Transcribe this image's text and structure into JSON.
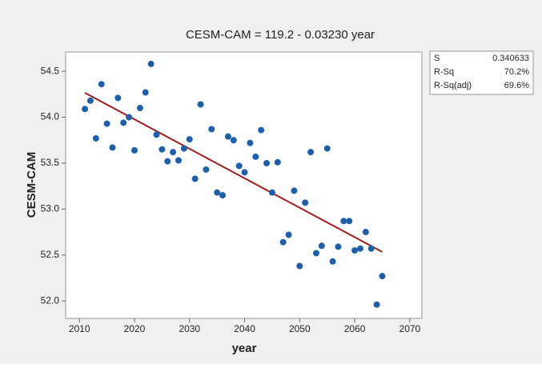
{
  "chart_data": {
    "type": "scatter",
    "title": "CESM-CAM = 119.2 - 0.03230 year",
    "x_label": "year",
    "y_label": "CESM-CAM",
    "x": [
      2011,
      2012,
      2013,
      2014,
      2015,
      2016,
      2017,
      2018,
      2019,
      2020,
      2021,
      2022,
      2023,
      2024,
      2025,
      2026,
      2027,
      2028,
      2029,
      2030,
      2031,
      2032,
      2033,
      2034,
      2035,
      2036,
      2037,
      2038,
      2039,
      2040,
      2041,
      2042,
      2043,
      2044,
      2045,
      2046,
      2047,
      2048,
      2049,
      2050,
      2051,
      2052,
      2053,
      2054,
      2055,
      2056,
      2057,
      2058,
      2059,
      2060,
      2061,
      2062,
      2063,
      2064,
      2065
    ],
    "values": [
      54.09,
      54.18,
      53.77,
      54.36,
      53.93,
      53.67,
      54.21,
      53.94,
      54.0,
      53.64,
      54.1,
      54.27,
      54.58,
      53.81,
      53.65,
      53.52,
      53.62,
      53.53,
      53.66,
      53.76,
      53.33,
      54.14,
      53.43,
      53.87,
      53.18,
      53.15,
      53.79,
      53.75,
      53.47,
      53.4,
      53.72,
      53.57,
      53.86,
      53.5,
      53.18,
      53.51,
      52.64,
      52.72,
      53.2,
      52.38,
      53.07,
      53.62,
      52.52,
      52.6,
      53.66,
      52.43,
      52.59,
      52.87,
      52.87,
      52.55,
      52.57,
      52.75,
      52.57,
      51.96,
      52.27
    ],
    "color": "#1f5fa8",
    "fit_line": true,
    "fit_color": "#a01c1c",
    "xlim": [
      2007.5,
      2072.2
    ],
    "ylim": [
      51.81,
      54.71
    ],
    "xticks": [
      2010,
      2020,
      2030,
      2040,
      2050,
      2060,
      2070
    ],
    "yticks": [
      {
        "value": 52,
        "label": "52.0"
      },
      52.5,
      {
        "value": 53,
        "label": "53.0"
      },
      53.5,
      {
        "value": 54,
        "label": "54.0"
      },
      54.5
    ],
    "stats": [
      [
        "S",
        "0.340633"
      ],
      [
        "R-Sq",
        "70.2%"
      ],
      [
        "R-Sq(adj)",
        "69.6%"
      ]
    ]
  }
}
